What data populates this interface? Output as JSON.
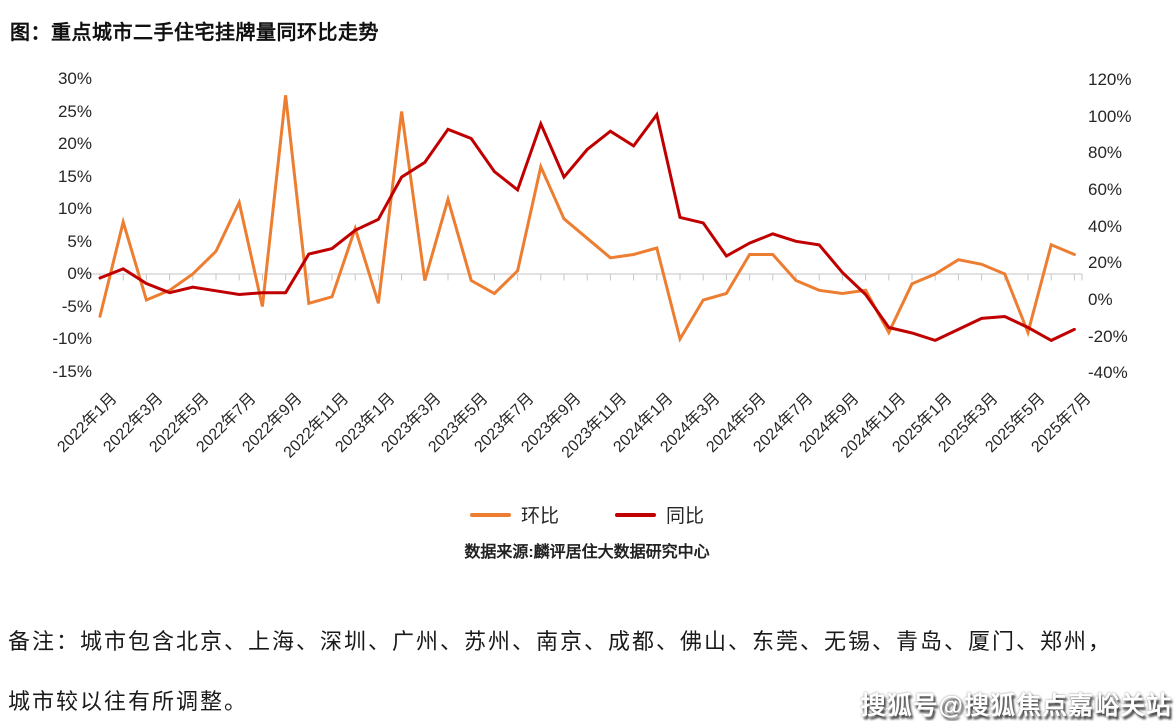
{
  "title": "图：重点城市二手住宅挂牌量同环比走势",
  "legend": {
    "items": [
      {
        "label": "环比",
        "color": "#ED7D31"
      },
      {
        "label": "同比",
        "color": "#C00000"
      }
    ]
  },
  "source_line": "数据来源:麟评居住大数据研究中心",
  "notes": {
    "line1": "备注：城市包含北京、上海、深圳、广州、苏州、南京、成都、佛山、东莞、无锡、青岛、厦门、郑州，",
    "line2": "城市较以往有所调整。"
  },
  "watermark": "搜狐号@搜狐焦点嘉峪关站",
  "chart_data": {
    "type": "line",
    "title": "图：重点城市二手住宅挂牌量同环比走势",
    "x": [
      "2022年1月",
      "2022年2月",
      "2022年3月",
      "2022年4月",
      "2022年5月",
      "2022年6月",
      "2022年7月",
      "2022年8月",
      "2022年9月",
      "2022年10月",
      "2022年11月",
      "2022年12月",
      "2023年1月",
      "2023年2月",
      "2023年3月",
      "2023年4月",
      "2023年5月",
      "2023年6月",
      "2023年7月",
      "2023年8月",
      "2023年9月",
      "2023年10月",
      "2023年11月",
      "2023年12月",
      "2024年1月",
      "2024年2月",
      "2024年3月",
      "2024年4月",
      "2024年5月",
      "2024年6月",
      "2024年7月",
      "2024年8月",
      "2024年9月",
      "2024年10月",
      "2024年11月",
      "2024年12月",
      "2025年1月",
      "2025年2月",
      "2025年3月",
      "2025年4月",
      "2025年5月",
      "2025年6月",
      "2025年7月"
    ],
    "x_tick_label_interval": 2,
    "series": [
      {
        "name": "环比",
        "axis": "left",
        "color": "#ED7D31",
        "values": [
          -6.5,
          8,
          -4,
          -2.5,
          0,
          3.5,
          11,
          -5,
          27.5,
          -4.5,
          -3.5,
          7,
          -4.5,
          25,
          -1,
          11.5,
          -1,
          -3,
          0.5,
          16.5,
          8.5,
          5.5,
          2.5,
          3,
          4,
          -10,
          -4,
          -3,
          3,
          3,
          -1,
          -2.5,
          -3,
          -2.5,
          -9,
          -1.5,
          0,
          2.2,
          1.5,
          0,
          -9,
          4.5,
          3
        ]
      },
      {
        "name": "同比",
        "axis": "right",
        "color": "#C00000",
        "values": [
          12,
          17,
          9,
          4,
          7,
          5,
          3,
          4,
          4,
          25,
          28,
          38,
          44,
          67,
          75,
          93,
          88,
          70,
          60,
          96,
          67,
          82,
          92,
          84,
          101,
          45,
          42,
          24,
          31,
          36,
          32,
          30,
          15,
          3,
          -15,
          -18,
          -22,
          -16,
          -10,
          -9,
          -15,
          -22,
          -16
        ]
      }
    ],
    "left_axis": {
      "ticks": [
        "30%",
        "25%",
        "20%",
        "15%",
        "10%",
        "5%",
        "0%",
        "-5%",
        "-10%",
        "-15%"
      ],
      "min": -15,
      "max": 30,
      "step": 5
    },
    "right_axis": {
      "ticks": [
        "120%",
        "100%",
        "80%",
        "60%",
        "40%",
        "20%",
        "0%",
        "-20%",
        "-40%"
      ],
      "min": -40,
      "max": 120,
      "step": 20
    },
    "grid": "zero-line-only",
    "legend_position": "bottom"
  }
}
